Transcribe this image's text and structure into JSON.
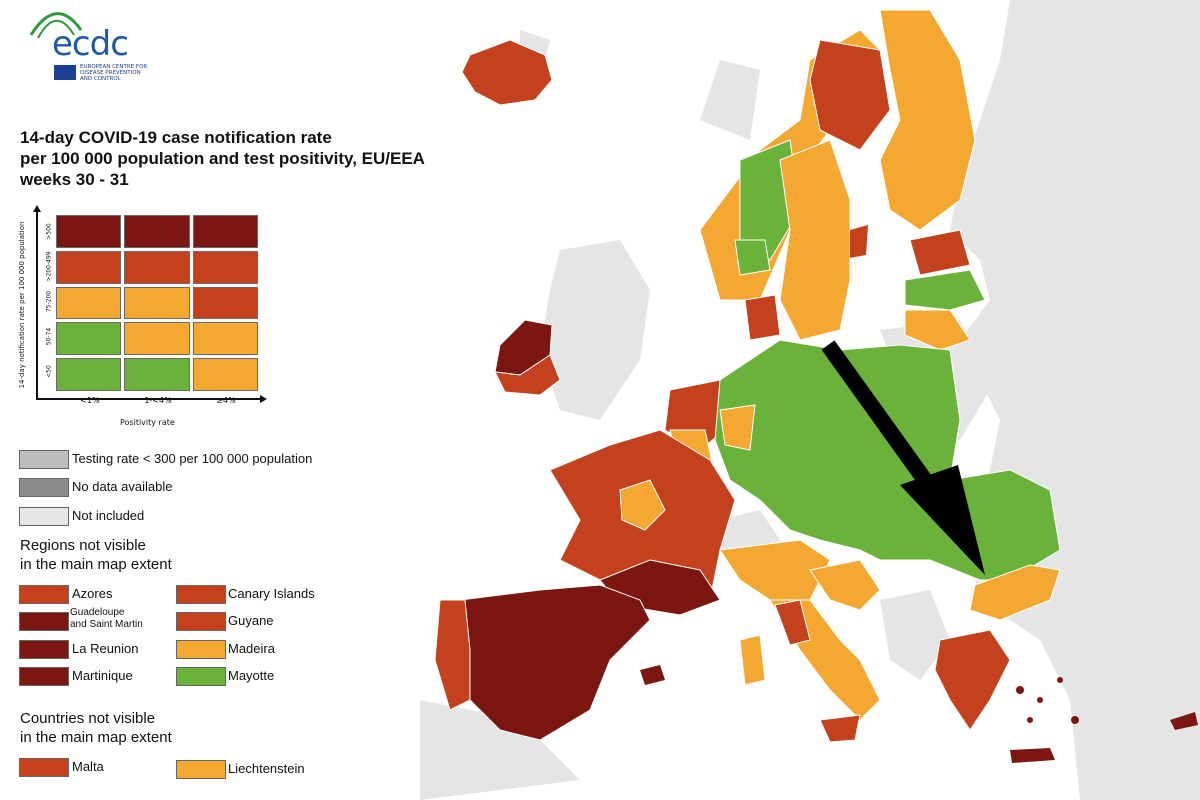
{
  "logo": {
    "text": "ecdc",
    "caption": "EUROPEAN CENTRE FOR\nDISEASE PREVENTION\nAND CONTROL"
  },
  "title": "14-day COVID-19 case notification rate\nper 100 000 population and test positivity, EU/EEA\nweeks 30 - 31",
  "colors": {
    "sea": "#ffffff",
    "land_grey": "#e5e5e5",
    "border": "#ffffff",
    "dark_red": "#7b1710",
    "red": "#c3421d",
    "orange": "#f4a731",
    "green": "#6ab23a",
    "testing_grey": "#bdbdbd",
    "nodata_grey": "#8c8c8c",
    "not_included": "#e6e6e6",
    "arrow": "#000000"
  },
  "matrix": {
    "y_title": "14-day notification rate per 100 000 population",
    "x_title": "Positivity rate",
    "row_labels": [
      ">500",
      ">200-499",
      "75-200",
      "50-74",
      "<50"
    ],
    "col_labels": [
      "<1%",
      "1-<4%",
      "≥4%"
    ],
    "cells": [
      [
        "dark_red",
        "dark_red",
        "dark_red"
      ],
      [
        "red",
        "red",
        "red"
      ],
      [
        "orange",
        "orange",
        "red"
      ],
      [
        "green",
        "orange",
        "orange"
      ],
      [
        "green",
        "green",
        "orange"
      ]
    ]
  },
  "legend_grey": [
    {
      "label": "Testing rate < 300 per 100 000 population",
      "color": "testing_grey"
    },
    {
      "label": "No data available",
      "color": "nodata_grey"
    },
    {
      "label": "Not included",
      "color": "not_included"
    }
  ],
  "regions_heading": "Regions not visible\nin the main map extent",
  "regions_left": [
    {
      "label": "Azores",
      "color": "red"
    },
    {
      "label": "Guadeloupe\nand Saint Martin",
      "color": "dark_red"
    },
    {
      "label": "La Reunion",
      "color": "dark_red"
    },
    {
      "label": "Martinique",
      "color": "dark_red"
    }
  ],
  "regions_right": [
    {
      "label": "Canary Islands",
      "color": "red"
    },
    {
      "label": "Guyane",
      "color": "red"
    },
    {
      "label": "Madeira",
      "color": "orange"
    },
    {
      "label": "Mayotte",
      "color": "green"
    }
  ],
  "countries_heading": "Countries not visible\nin the main map extent",
  "countries": [
    {
      "label": "Malta",
      "color": "red"
    },
    {
      "label": "Liechtenstein",
      "color": "orange"
    }
  ]
}
